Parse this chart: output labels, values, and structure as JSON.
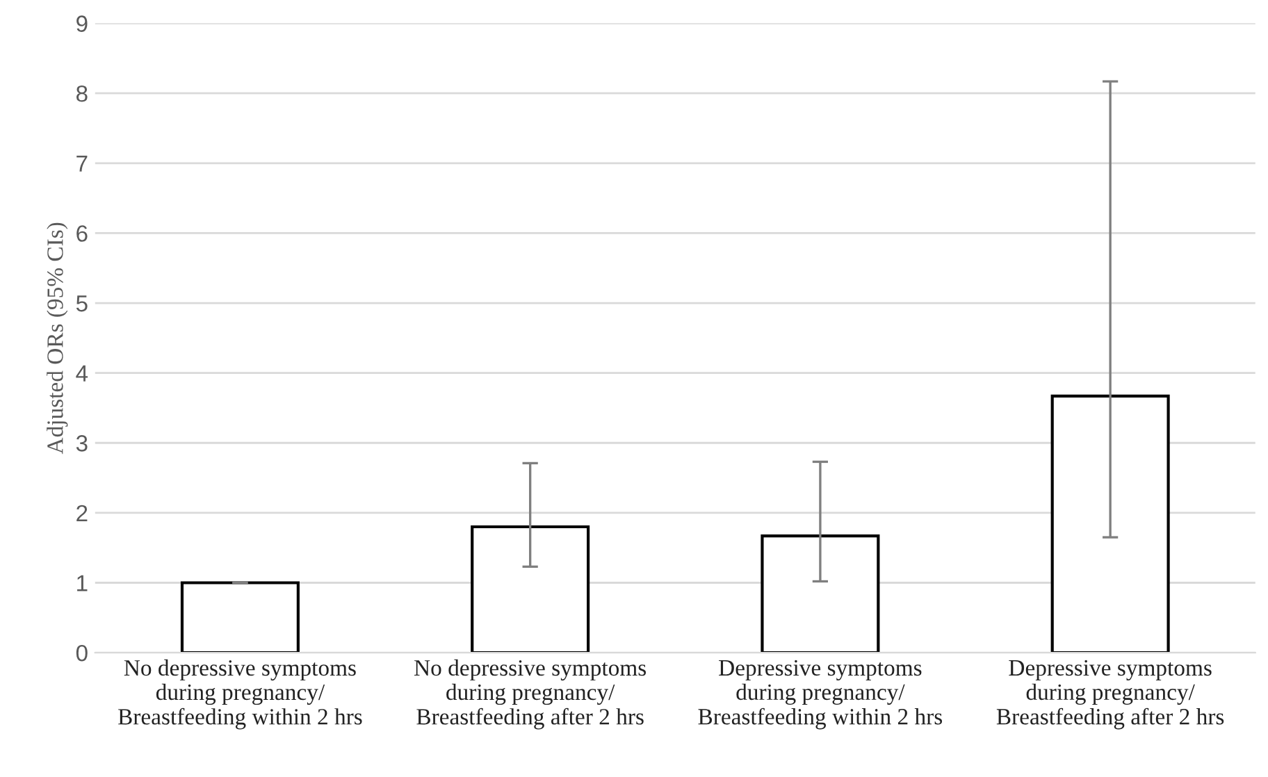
{
  "chart_data": {
    "type": "bar",
    "ylabel": "Adjusted ORs (95% CIs)",
    "categories": [
      "No depressive symptoms\nduring pregnancy/\nBreastfeeding within 2 hrs",
      "No depressive symptoms\nduring pregnancy/\nBreastfeeding after 2 hrs",
      "Depressive symptoms\nduring pregnancy/\nBreastfeeding within 2 hrs",
      "Depressive symptoms\nduring pregnancy/\nBreastfeeding after 2 hrs"
    ],
    "values": [
      1.0,
      1.8,
      1.67,
      3.67
    ],
    "errors": [
      [
        1.0,
        1.0
      ],
      [
        1.23,
        2.71
      ],
      [
        1.02,
        2.73
      ],
      [
        1.65,
        8.17
      ]
    ],
    "color": "#ffffff",
    "ylim": [
      0,
      9
    ],
    "yticks": [
      0,
      1,
      2,
      3,
      4,
      5,
      6,
      7,
      8,
      9
    ],
    "grid": "y"
  }
}
